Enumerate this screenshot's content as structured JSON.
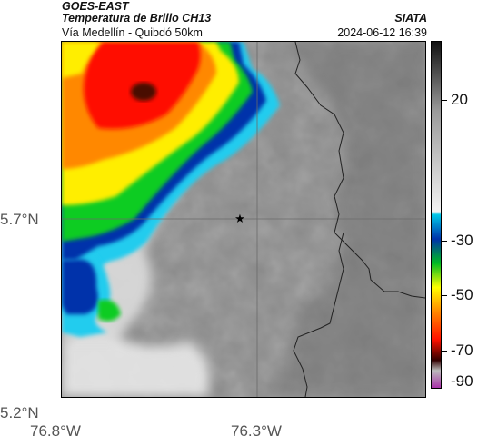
{
  "header": {
    "satellite": "GOES-EAST",
    "product": "Temperatura de Brillo CH13",
    "region": "Vía Medellín - Quibdó 50km",
    "organization": "SIATA",
    "timestamp": "2024-06-12 16:39"
  },
  "axes": {
    "lat_labels": [
      "5.7°N",
      "5.2°N"
    ],
    "lon_labels": [
      "76.8°W",
      "76.3°W"
    ]
  },
  "colorbar": {
    "tick_labels": [
      "20",
      "-30",
      "-50",
      "-70",
      "-90"
    ],
    "tick_values": [
      20,
      -30,
      -50,
      -70,
      -90
    ],
    "range": [
      25,
      -92
    ],
    "colors": [
      "#111111",
      "#9a9a9a",
      "#f2f2f2",
      "#00c8e8",
      "#0033aa",
      "#00bb22",
      "#ffff00",
      "#ff8800",
      "#ff1100",
      "#330000",
      "#bbbbbb",
      "#aa33aa"
    ]
  },
  "map": {
    "marker": "star-icon",
    "grid": true,
    "colors": {
      "cloud_free": "#8d8d8d",
      "cold_top_red": "#ff2200",
      "cold_top_yellow": "#ffee00",
      "cold_top_green": "#11cc22",
      "cold_top_blue": "#0033aa",
      "cold_top_cyan": "#22ccee",
      "border_line": "#222222"
    }
  }
}
